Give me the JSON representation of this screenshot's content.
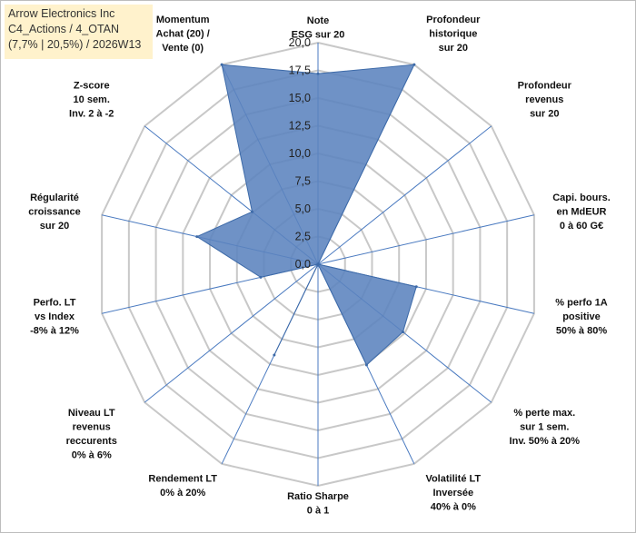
{
  "header": {
    "line1": "Arrow Electronics Inc",
    "line2": "C4_Actions / 4_OTAN",
    "line3": "(7,7% | 20,5%) / 2026W13"
  },
  "chart_data": {
    "type": "radar",
    "title": "Arrow Electronics Inc",
    "rmin": 0,
    "rmax": 20,
    "ticks": [
      "0,0",
      "2,5",
      "5,0",
      "7,5",
      "10,0",
      "12,5",
      "15,0",
      "17,5",
      "20,0"
    ],
    "tick_values": [
      0,
      2.5,
      5,
      7.5,
      10,
      12.5,
      15,
      17.5,
      20
    ],
    "axes": [
      {
        "label": [
          "Note",
          "ESG sur 20"
        ],
        "value": 17.2
      },
      {
        "label": [
          "Profondeur",
          "historique",
          "sur 20"
        ],
        "value": 20
      },
      {
        "label": [
          "Profondeur",
          "revenus",
          "sur 20"
        ],
        "value": 0
      },
      {
        "label": [
          "Capi. bours.",
          "en MdEUR",
          "0 à 60 G€"
        ],
        "value": 0
      },
      {
        "label": [
          "% perfo 1A",
          "positive",
          "50% à 80%"
        ],
        "value": 9.1
      },
      {
        "label": [
          "% perte max.",
          "sur 1 sem.",
          "Inv. 50% à 20%"
        ],
        "value": 9.8
      },
      {
        "label": [
          "Volatilité LT",
          "Inversée",
          "40% à 0%"
        ],
        "value": 10.1
      },
      {
        "label": [
          "Ratio Sharpe",
          "0 à 1"
        ],
        "value": 0
      },
      {
        "label": [
          "Rendement LT",
          "0% à 20%"
        ],
        "value": 9.1
      },
      {
        "label": [
          "Niveau LT",
          "revenus",
          "reccurents",
          "0% à 6%"
        ],
        "value": 0
      },
      {
        "label": [
          "Perfo. LT",
          "vs Index",
          "-8% à 12%"
        ],
        "value": 5.3
      },
      {
        "label": [
          "Régularité",
          "croissance",
          "sur 20"
        ],
        "value": 11.2
      },
      {
        "label": [
          "Z-score",
          "10 sem.",
          "Inv. 2 à -2"
        ],
        "value": 7.6
      },
      {
        "label": [
          "Momentum",
          "Achat (20) /",
          "Vente (0)"
        ],
        "value": 20
      }
    ],
    "colors": {
      "fill": "#5b83be",
      "stroke": "#3d6aa8",
      "grid": "#c8c8c8",
      "spoke": "#4a7ac0"
    }
  }
}
